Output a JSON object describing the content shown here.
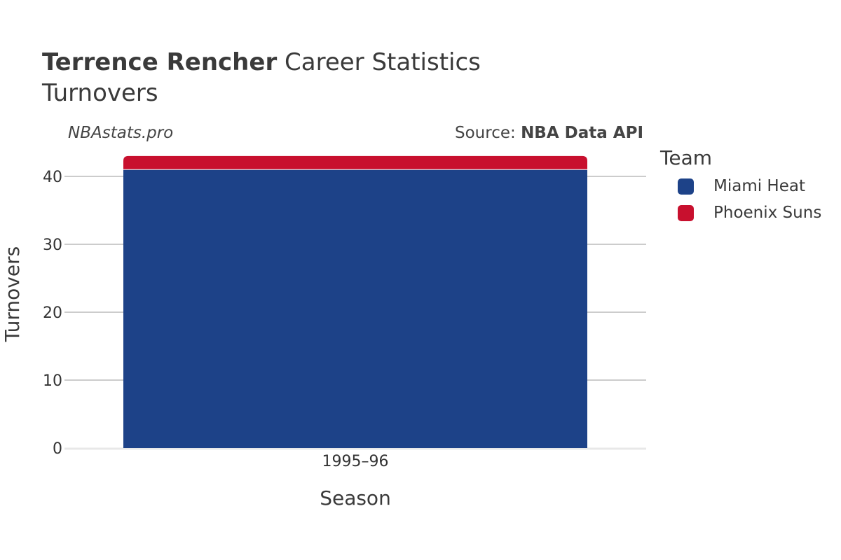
{
  "header": {
    "title_bold": "Terrence Rencher",
    "title_rest": " Career Statistics",
    "subtitle": "Turnovers",
    "watermark": "NBAstats.pro",
    "source_prefix": "Source: ",
    "source_name": "NBA Data API"
  },
  "legend": {
    "title": "Team",
    "items": [
      {
        "label": "Miami Heat",
        "color": "#1d4288"
      },
      {
        "label": "Phoenix Suns",
        "color": "#c8102e"
      }
    ]
  },
  "chart_data": {
    "type": "bar",
    "stacked": true,
    "categories": [
      "1995–96"
    ],
    "series": [
      {
        "name": "Miami Heat",
        "values": [
          41
        ],
        "color": "#1d4288"
      },
      {
        "name": "Phoenix Suns",
        "values": [
          2
        ],
        "color": "#c8102e"
      }
    ],
    "xlabel": "Season",
    "ylabel": "Turnovers",
    "ylim": [
      0,
      43
    ],
    "yticks": [
      0,
      10,
      20,
      30,
      40
    ],
    "grid": true,
    "legend_position": "right"
  }
}
